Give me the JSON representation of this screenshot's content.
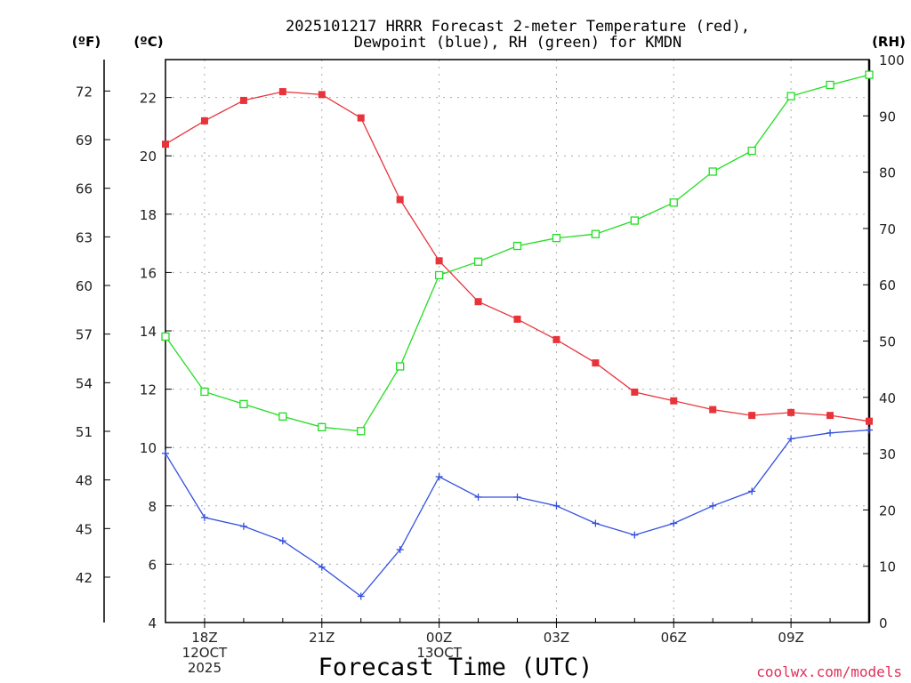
{
  "chart_data": {
    "type": "line",
    "title_line1": "2025101217 HRRR Forecast 2-meter Temperature (red),",
    "title_line2": "Dewpoint (blue), RH (green) for KMDN",
    "xlabel": "Forecast Time (UTC)",
    "credit": "coolwx.com/models",
    "units": {
      "fahrenheit": "(ºF)",
      "celsius": "(ºC)",
      "rh": "(RH)"
    },
    "x_hours": [
      17,
      18,
      19,
      20,
      21,
      22,
      23,
      24,
      25,
      26,
      27,
      28,
      29,
      30,
      31,
      32,
      33,
      34,
      35
    ],
    "x_tick_labels": [
      {
        "hour": 18,
        "lines": [
          "18Z",
          "12OCT",
          "2025"
        ]
      },
      {
        "hour": 21,
        "lines": [
          "21Z"
        ]
      },
      {
        "hour": 24,
        "lines": [
          "00Z",
          "13OCT"
        ]
      },
      {
        "hour": 27,
        "lines": [
          "03Z"
        ]
      },
      {
        "hour": 30,
        "lines": [
          "06Z"
        ]
      },
      {
        "hour": 33,
        "lines": [
          "09Z"
        ]
      }
    ],
    "xlim": [
      17,
      35
    ],
    "celsius_axis": {
      "range": [
        4,
        23.3
      ],
      "ticks": [
        4,
        6,
        8,
        10,
        12,
        14,
        16,
        18,
        20,
        22
      ]
    },
    "fahrenheit_axis": {
      "ticks": [
        42,
        45,
        48,
        51,
        54,
        57,
        60,
        63,
        66,
        69,
        72
      ]
    },
    "rh_axis": {
      "range": [
        0,
        100
      ],
      "ticks": [
        0,
        10,
        20,
        30,
        40,
        50,
        60,
        70,
        80,
        90,
        100
      ]
    },
    "series": [
      {
        "name": "Temperature",
        "color": "#e8333a",
        "marker": "filled-square",
        "axis": "celsius",
        "values": [
          20.4,
          21.2,
          21.9,
          22.2,
          22.1,
          21.3,
          18.5,
          16.4,
          15.0,
          14.4,
          13.7,
          12.9,
          11.9,
          11.6,
          11.3,
          11.1,
          11.2,
          11.1,
          10.9
        ]
      },
      {
        "name": "Dewpoint",
        "color": "#3350e0",
        "marker": "plus",
        "axis": "celsius",
        "values": [
          9.8,
          7.6,
          7.3,
          6.8,
          5.9,
          4.9,
          6.5,
          9.0,
          8.3,
          8.3,
          8.0,
          7.4,
          7.0,
          7.4,
          8.0,
          8.5,
          10.3,
          10.5,
          10.6
        ]
      },
      {
        "name": "RH",
        "color": "#22dd22",
        "marker": "open-square",
        "axis": "rh",
        "values": [
          50.8,
          41.0,
          38.8,
          36.6,
          34.7,
          34.0,
          45.5,
          61.7,
          64.1,
          66.9,
          68.3,
          69.0,
          71.4,
          74.6,
          80.1,
          83.8,
          93.5,
          95.5,
          97.3
        ]
      }
    ]
  }
}
